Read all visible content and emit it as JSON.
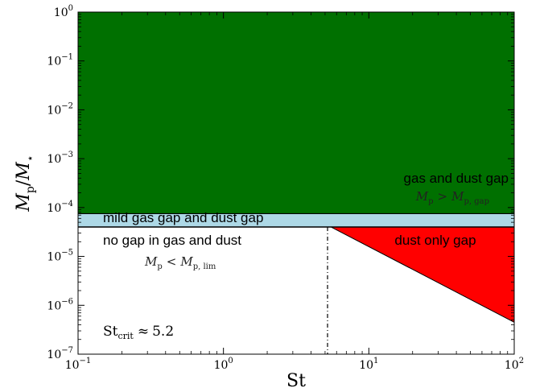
{
  "chart_data": {
    "type": "area",
    "x_scale": "log",
    "y_scale": "log",
    "xlim": [
      0.1,
      100
    ],
    "ylim": [
      1e-07,
      1
    ],
    "xlabel": "St",
    "ylabel": "M_p/M_*",
    "x_ticks": [
      {
        "value": 0.1,
        "base": "10",
        "exp": "−1"
      },
      {
        "value": 1,
        "base": "10",
        "exp": "0"
      },
      {
        "value": 10,
        "base": "10",
        "exp": "1"
      },
      {
        "value": 100,
        "base": "10",
        "exp": "2"
      }
    ],
    "y_ticks": [
      {
        "value": 1,
        "base": "10",
        "exp": "0"
      },
      {
        "value": 0.1,
        "base": "10",
        "exp": "−1"
      },
      {
        "value": 0.01,
        "base": "10",
        "exp": "−2"
      },
      {
        "value": 0.001,
        "base": "10",
        "exp": "−3"
      },
      {
        "value": 0.0001,
        "base": "10",
        "exp": "−4"
      },
      {
        "value": 1e-05,
        "base": "10",
        "exp": "−5"
      },
      {
        "value": 1e-06,
        "base": "10",
        "exp": "−6"
      },
      {
        "value": 1e-07,
        "base": "10",
        "exp": "−7"
      }
    ],
    "regions": [
      {
        "name": "gas and dust gap",
        "color": "#007000",
        "x_range": [
          0.1,
          100
        ],
        "y_range": [
          7.5e-05,
          1
        ]
      },
      {
        "name": "mild gas gap and dust gap",
        "color": "#add8e6",
        "x_range": [
          0.1,
          100
        ],
        "y_range": [
          4e-05,
          7.5e-05
        ]
      },
      {
        "name": "dust only gap",
        "color": "#ff0000",
        "polygon": [
          [
            5.5,
            4e-05
          ],
          [
            100,
            4e-05
          ],
          [
            100,
            4.5e-07
          ]
        ]
      }
    ],
    "boundaries": {
      "M_p_gap": 7.5e-05,
      "M_p_lim": 4e-05,
      "St_crit": 5.2,
      "diagonal_end": [
        100,
        4.5e-07
      ]
    },
    "annotations": {
      "gas_dust_gap": "gas and dust gap",
      "gas_dust_gap_cond_lhs": "M",
      "gas_dust_gap_cond_sub": "p",
      "gas_dust_gap_cond_rel": ">",
      "gas_dust_gap_cond_rhs": "M",
      "gas_dust_gap_cond_rhs_sub": "p, gap",
      "mild": "mild gas gap and dust gap",
      "no_gap": "no gap in gas and dust",
      "no_gap_cond_lhs": "M",
      "no_gap_cond_sub": "p",
      "no_gap_cond_rel": "<",
      "no_gap_cond_rhs": "M",
      "no_gap_cond_rhs_sub": "p, lim",
      "dust_only": "dust only gap",
      "st_crit_name": "St",
      "st_crit_sub": "crit",
      "st_crit_rel": "≈",
      "st_crit_value": "5.2"
    },
    "ylabel_parts": {
      "num": "M",
      "num_sub": "p",
      "slash": "/",
      "den": "M",
      "den_sub": "⋆"
    }
  }
}
